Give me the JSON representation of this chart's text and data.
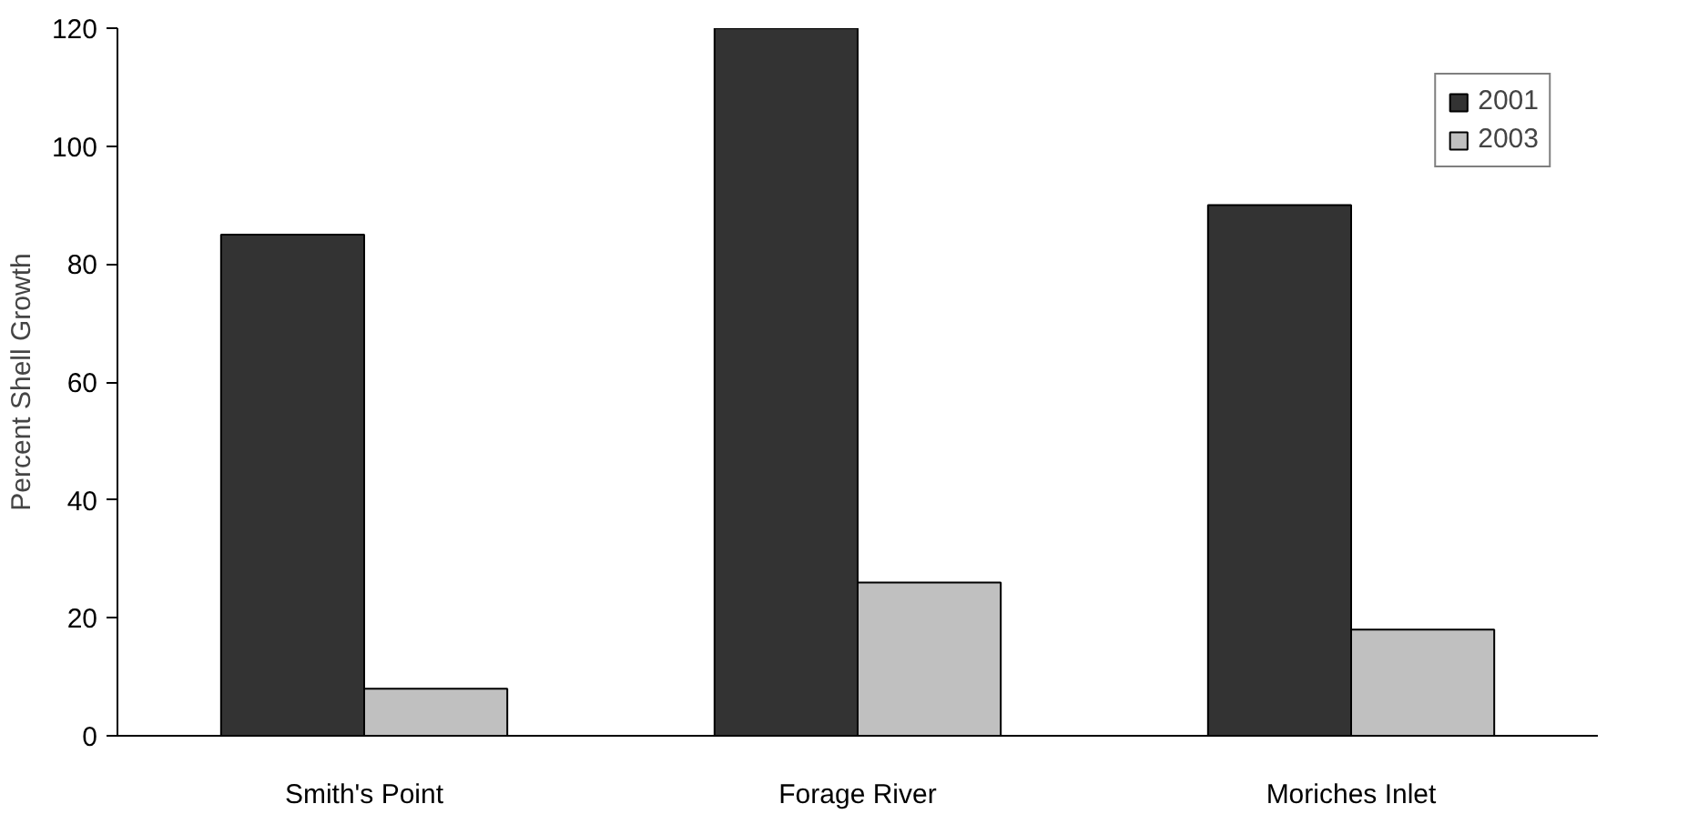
{
  "chart_data": {
    "type": "bar",
    "ylabel": "Percent Shell Growth",
    "categories": [
      "Smith's Point",
      "Forage River",
      "Moriches Inlet"
    ],
    "series": [
      {
        "name": "2001",
        "color": "#333333",
        "values": [
          85,
          120,
          90
        ]
      },
      {
        "name": "2003",
        "color": "#c0c0c0",
        "values": [
          8,
          26,
          18
        ]
      }
    ],
    "ylim": [
      0,
      120
    ],
    "yticks": [
      0,
      20,
      40,
      60,
      80,
      100,
      120
    ],
    "grid": false,
    "legend": "top right"
  }
}
